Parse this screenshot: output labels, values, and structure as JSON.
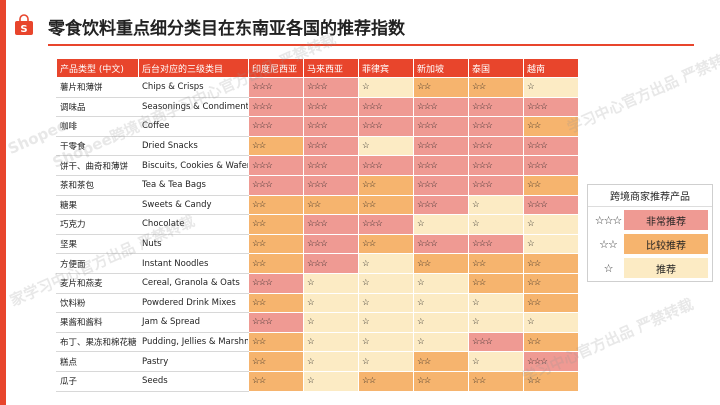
{
  "title": "零食饮料重点细分类目在东南亚各国的推荐指数",
  "brand_color": "#e8452c",
  "level_colors": {
    "3": "#ef9a93",
    "2": "#f6b46e",
    "1": "#fcebc4"
  },
  "watermarks": [
    "Shopee跨境电商学习中心官方出品 严禁转载",
    "家学习中心官方出品 严禁转载",
    "学习中心官方出品 严禁转载",
    "Shopee",
    "学习中心官方出品 严禁转载"
  ],
  "table": {
    "headers": [
      "产品类型 (中文)",
      "后台对应的三级类目",
      "印度尼西亚",
      "马来西亚",
      "菲律宾",
      "新加坡",
      "泰国",
      "越南"
    ],
    "rows": [
      {
        "cn": "薯片和薄饼",
        "en": "Chips & Crisps",
        "levels": [
          3,
          3,
          1,
          2,
          2,
          1
        ]
      },
      {
        "cn": "调味品",
        "en": "Seasonings & Condiments",
        "levels": [
          3,
          3,
          3,
          3,
          3,
          3
        ]
      },
      {
        "cn": "咖啡",
        "en": "Coffee",
        "levels": [
          3,
          3,
          3,
          3,
          3,
          2
        ]
      },
      {
        "cn": "干零食",
        "en": "Dried Snacks",
        "levels": [
          2,
          3,
          1,
          3,
          3,
          3
        ]
      },
      {
        "cn": "饼干、曲奇和薄饼",
        "en": "Biscuits, Cookies & Wafers",
        "levels": [
          3,
          3,
          3,
          3,
          3,
          3
        ]
      },
      {
        "cn": "茶和茶包",
        "en": "Tea & Tea Bags",
        "levels": [
          3,
          3,
          2,
          3,
          3,
          2
        ]
      },
      {
        "cn": "糖果",
        "en": "Sweets & Candy",
        "levels": [
          2,
          2,
          2,
          3,
          1,
          3
        ]
      },
      {
        "cn": "巧克力",
        "en": "Chocolate",
        "levels": [
          2,
          3,
          3,
          1,
          1,
          1
        ]
      },
      {
        "cn": "坚果",
        "en": "Nuts",
        "levels": [
          2,
          3,
          2,
          3,
          3,
          1
        ]
      },
      {
        "cn": "方便面",
        "en": "Instant Noodles",
        "levels": [
          2,
          3,
          1,
          2,
          2,
          2
        ]
      },
      {
        "cn": "麦片和燕麦",
        "en": "Cereal, Granola & Oats",
        "levels": [
          3,
          1,
          1,
          1,
          2,
          2
        ]
      },
      {
        "cn": "饮料粉",
        "en": "Powdered Drink Mixes",
        "levels": [
          2,
          1,
          1,
          1,
          1,
          2
        ]
      },
      {
        "cn": "果酱和酱料",
        "en": "Jam & Spread",
        "levels": [
          3,
          1,
          1,
          1,
          1,
          1
        ]
      },
      {
        "cn": "布丁、果冻和棉花糖",
        "en": "Pudding, Jellies & Marshmallow",
        "levels": [
          2,
          1,
          1,
          1,
          3,
          2
        ]
      },
      {
        "cn": "糕点",
        "en": "Pastry",
        "levels": [
          2,
          1,
          1,
          2,
          1,
          3
        ]
      },
      {
        "cn": "瓜子",
        "en": "Seeds",
        "levels": [
          2,
          1,
          2,
          2,
          2,
          2
        ]
      }
    ]
  },
  "legend": {
    "title": "跨境商家推荐产品",
    "items": [
      {
        "stars": "☆☆☆",
        "label": "非常推荐",
        "level": 3
      },
      {
        "stars": "☆☆",
        "label": "比较推荐",
        "level": 2
      },
      {
        "stars": "☆",
        "label": "推荐",
        "level": 1
      }
    ]
  }
}
